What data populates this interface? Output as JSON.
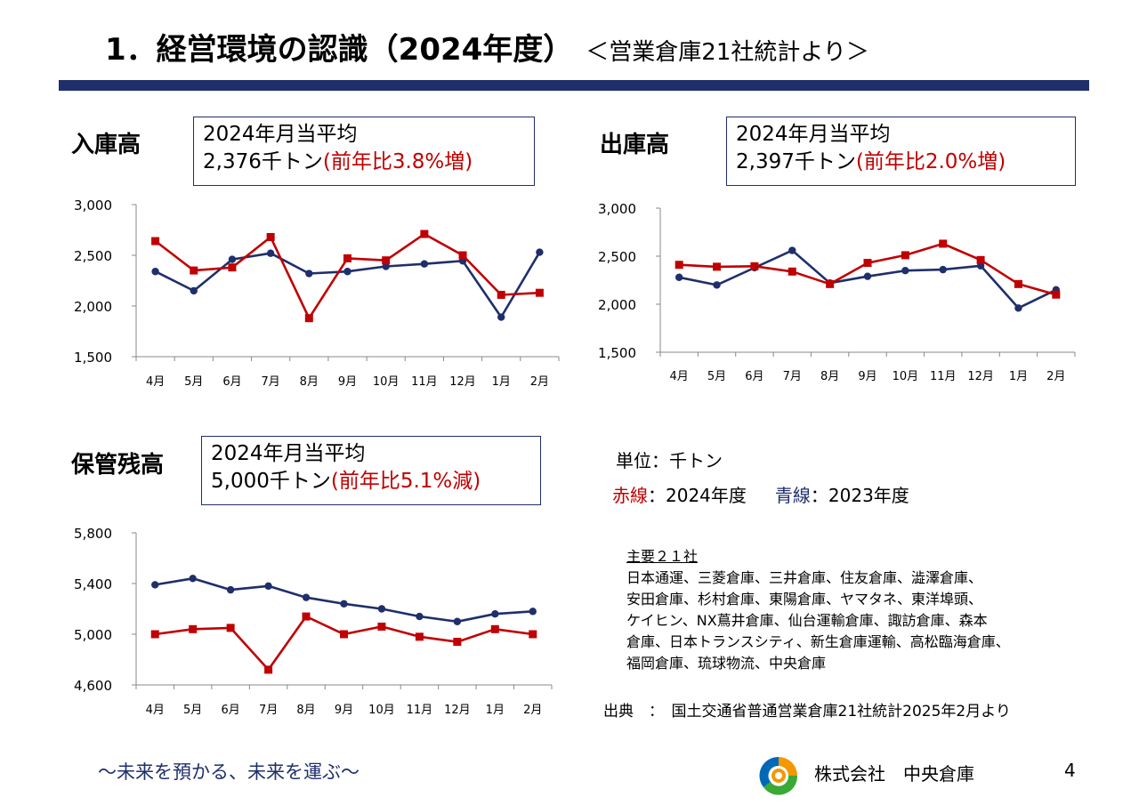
{
  "header": {
    "title": "1．経営環境の認識（2024年度）",
    "subtitle": "＜営業倉庫21社統計より＞"
  },
  "charts": {
    "inbound": {
      "label": "入庫高",
      "avg_line1": "2024年月当平均",
      "avg_value": "2,376千トン",
      "avg_change": "(前年比3.8%増)"
    },
    "outbound": {
      "label": "出庫高",
      "avg_line1": "2024年月当平均",
      "avg_value": "2,397千トン",
      "avg_change": "(前年比2.0%増)"
    },
    "storage": {
      "label": "保管残高",
      "avg_line1": "2024年月当平均",
      "avg_value": "5,000千トン",
      "avg_change": "(前年比5.1%減)"
    }
  },
  "legend": {
    "unit": "単位：千トン",
    "red_label": "赤線",
    "red_desc": "：2024年度",
    "blue_label": "青線",
    "blue_desc": "：2023年度"
  },
  "companies": {
    "heading": "主要２１社",
    "lines": [
      "日本通運、三菱倉庫、三井倉庫、住友倉庫、澁澤倉庫、",
      "安田倉庫、杉村倉庫、東陽倉庫、ヤマタネ、東洋埠頭、",
      "ケイヒン、NX蔦井倉庫、仙台運輸倉庫、諏訪倉庫、森本",
      "倉庫、日本トランスシティ、新生倉庫運輸、高松臨海倉庫、",
      "福岡倉庫、琉球物流、中央倉庫"
    ]
  },
  "source": "出典　：　国土交通省普通営業倉庫21社統計2025年2月より",
  "footer": {
    "slogan": "～未来を預かる、未来を運ぶ～",
    "company": "株式会社　中央倉庫",
    "page": "4"
  },
  "colors": {
    "red": "#c00000",
    "navy": "#1f2f6b",
    "logo_orange": "#f39800",
    "logo_green": "#3aa935",
    "logo_blue": "#0068b7"
  },
  "chart_data": [
    {
      "id": "inbound",
      "type": "line",
      "title": "入庫高",
      "categories": [
        "4月",
        "5月",
        "6月",
        "7月",
        "8月",
        "9月",
        "10月",
        "11月",
        "12月",
        "1月",
        "2月"
      ],
      "ylim": [
        1500,
        3000
      ],
      "yticks": [
        1500,
        2000,
        2500,
        3000
      ],
      "ytick_labels": [
        "1,500",
        "2,000",
        "2,500",
        "3,000"
      ],
      "series": [
        {
          "name": "2023年度",
          "color": "#1f2f6b",
          "marker": "circle",
          "values": [
            2340,
            2150,
            2460,
            2520,
            2320,
            2340,
            2390,
            2415,
            2445,
            1890,
            2530
          ]
        },
        {
          "name": "2024年度",
          "color": "#c00000",
          "marker": "square",
          "values": [
            2640,
            2350,
            2380,
            2680,
            1880,
            2470,
            2450,
            2710,
            2500,
            2110,
            2130
          ]
        }
      ]
    },
    {
      "id": "outbound",
      "type": "line",
      "title": "出庫高",
      "categories": [
        "4月",
        "5月",
        "6月",
        "7月",
        "8月",
        "9月",
        "10月",
        "11月",
        "12月",
        "1月",
        "2月"
      ],
      "ylim": [
        1500,
        3000
      ],
      "yticks": [
        1500,
        2000,
        2500,
        3000
      ],
      "ytick_labels": [
        "1,500",
        "2,000",
        "2,500",
        "3,000"
      ],
      "series": [
        {
          "name": "2023年度",
          "color": "#1f2f6b",
          "marker": "circle",
          "values": [
            2280,
            2200,
            2380,
            2560,
            2220,
            2290,
            2350,
            2360,
            2400,
            1960,
            2150
          ]
        },
        {
          "name": "2024年度",
          "color": "#c00000",
          "marker": "square",
          "values": [
            2410,
            2390,
            2395,
            2340,
            2210,
            2430,
            2510,
            2630,
            2460,
            2210,
            2100
          ]
        }
      ]
    },
    {
      "id": "storage",
      "type": "line",
      "title": "保管残高",
      "categories": [
        "4月",
        "5月",
        "6月",
        "7月",
        "8月",
        "9月",
        "10月",
        "11月",
        "12月",
        "1月",
        "2月"
      ],
      "ylim": [
        4600,
        5800
      ],
      "yticks": [
        4600,
        5000,
        5400,
        5800
      ],
      "ytick_labels": [
        "4,600",
        "5,000",
        "5,400",
        "5,800"
      ],
      "series": [
        {
          "name": "2023年度",
          "color": "#1f2f6b",
          "marker": "circle",
          "values": [
            5390,
            5440,
            5350,
            5380,
            5290,
            5240,
            5200,
            5140,
            5100,
            5160,
            5180
          ]
        },
        {
          "name": "2024年度",
          "color": "#c00000",
          "marker": "square",
          "values": [
            5000,
            5040,
            5050,
            4720,
            5140,
            5000,
            5060,
            4980,
            4940,
            5040,
            5000
          ]
        }
      ]
    }
  ]
}
